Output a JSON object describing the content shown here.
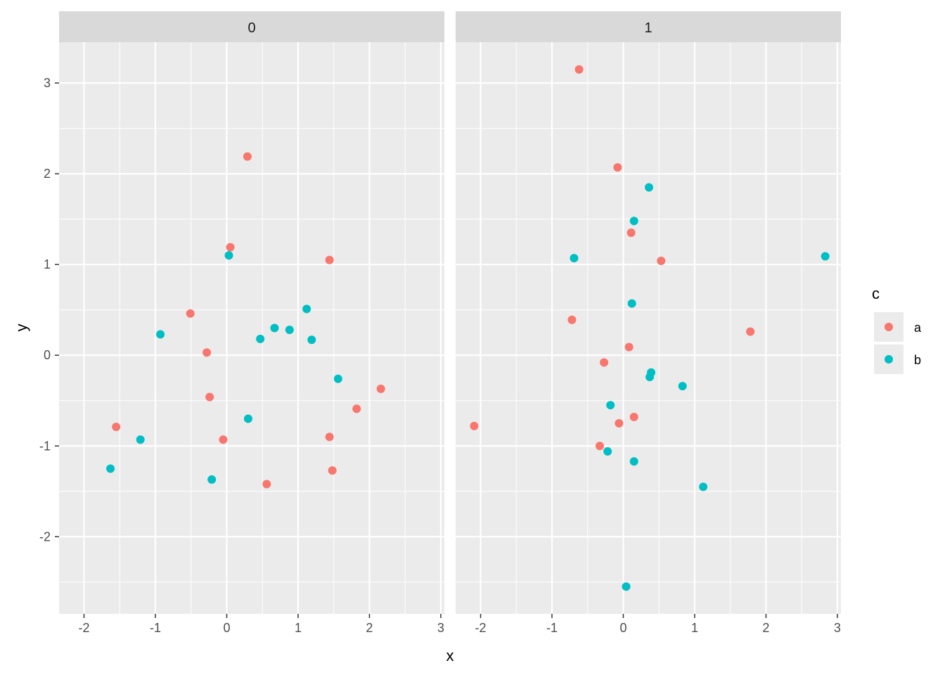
{
  "chart_data": {
    "type": "scatter",
    "xlabel": "x",
    "ylabel": "y",
    "xlim": [
      -2.35,
      3.05
    ],
    "ylim": [
      -2.85,
      3.45
    ],
    "x_ticks": [
      -2,
      -1,
      0,
      1,
      2,
      3
    ],
    "y_ticks": [
      -2,
      -1,
      0,
      1,
      2,
      3
    ],
    "grid": true,
    "legend": {
      "title": "c",
      "placement": "right",
      "entries": [
        {
          "key": "a",
          "label": "a",
          "color": "#F8766D"
        },
        {
          "key": "b",
          "label": "b",
          "color": "#00BFC4"
        }
      ]
    },
    "panels": [
      {
        "strip": "0",
        "series": [
          {
            "name": "a",
            "color": "#F8766D",
            "x": [
              0.29,
              0.05,
              1.44,
              -0.51,
              -0.28,
              -0.24,
              -1.55,
              -0.05,
              0.56,
              1.44,
              1.48,
              1.82,
              2.16
            ],
            "y": [
              2.19,
              1.19,
              1.05,
              0.46,
              0.03,
              -0.46,
              -0.79,
              -0.93,
              -1.42,
              -0.9,
              -1.27,
              -0.59,
              -0.37
            ]
          },
          {
            "name": "b",
            "color": "#00BFC4",
            "x": [
              0.03,
              -0.93,
              0.47,
              0.67,
              0.88,
              1.12,
              1.19,
              1.56,
              0.3,
              -1.21,
              -1.63,
              -0.21
            ],
            "y": [
              1.1,
              0.23,
              0.18,
              0.3,
              0.28,
              0.51,
              0.17,
              -0.26,
              -0.7,
              -0.93,
              -1.25,
              -1.37
            ]
          }
        ]
      },
      {
        "strip": "1",
        "series": [
          {
            "name": "a",
            "color": "#F8766D",
            "x": [
              -0.62,
              -0.08,
              0.11,
              0.53,
              -0.72,
              0.08,
              -0.27,
              -0.06,
              0.15,
              -0.33,
              -2.09,
              1.78
            ],
            "y": [
              3.15,
              2.07,
              1.35,
              1.04,
              0.39,
              0.09,
              -0.08,
              -0.75,
              -0.68,
              -1.0,
              -0.78,
              0.26
            ]
          },
          {
            "name": "b",
            "color": "#00BFC4",
            "x": [
              0.36,
              0.15,
              -0.69,
              0.12,
              0.39,
              0.37,
              -0.18,
              0.83,
              -0.22,
              0.15,
              1.12,
              2.83,
              0.04
            ],
            "y": [
              1.85,
              1.48,
              1.07,
              0.57,
              -0.19,
              -0.24,
              -0.55,
              -0.34,
              -1.06,
              -1.17,
              -1.45,
              1.09,
              -2.55
            ]
          }
        ]
      }
    ]
  }
}
